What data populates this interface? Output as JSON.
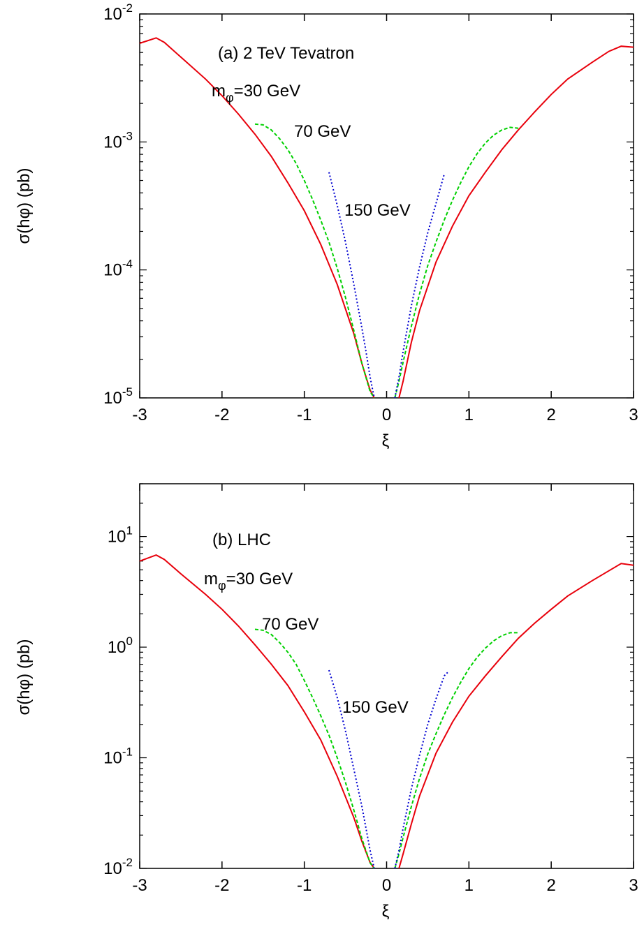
{
  "chart_data": [
    {
      "type": "line",
      "title": "(a) 2 TeV Tevatron",
      "annotations": [
        "m",
        "φ",
        "=30 GeV",
        "70 GeV",
        "150 GeV"
      ],
      "xlabel": "ξ",
      "ylabel": "σ(hφ)   (pb)",
      "xlim": [
        -3,
        3
      ],
      "ylim": [
        1e-05,
        0.01
      ],
      "yscale": "log",
      "grid": false,
      "x_ticks": [
        "-3",
        "-2",
        "-1",
        "0",
        "1",
        "2",
        "3"
      ],
      "y_ticks": [
        {
          "base": "10",
          "exp": "-5"
        },
        {
          "base": "10",
          "exp": "-4"
        },
        {
          "base": "10",
          "exp": "-3"
        },
        {
          "base": "10",
          "exp": "-2"
        }
      ],
      "series": [
        {
          "color": "#e8000b",
          "style": "solid",
          "x": [
            -3.0,
            -2.8,
            -2.7,
            -2.5,
            -2.2,
            -2.0,
            -1.8,
            -1.6,
            -1.4,
            -1.2,
            -1.0,
            -0.8,
            -0.6,
            -0.4,
            -0.3,
            -0.2,
            -0.15
          ],
          "y": [
            0.0059,
            0.0065,
            0.006,
            0.0046,
            0.0031,
            0.0023,
            0.00165,
            0.00115,
            0.00077,
            0.00048,
            0.00029,
            0.000158,
            7.7e-05,
            3.2e-05,
            1.85e-05,
            1.15e-05,
            1e-05
          ]
        },
        {
          "color": "#e8000b",
          "style": "solid",
          "x": [
            0.15,
            0.2,
            0.3,
            0.4,
            0.6,
            0.8,
            1.0,
            1.2,
            1.4,
            1.6,
            1.8,
            2.0,
            2.2,
            2.5,
            2.7,
            2.85,
            3.0
          ],
          "y": [
            1e-05,
            1.35e-05,
            2.7e-05,
            4.8e-05,
            0.000115,
            0.00022,
            0.00038,
            0.00058,
            0.00087,
            0.00124,
            0.00172,
            0.00235,
            0.0031,
            0.0042,
            0.0051,
            0.0056,
            0.0055
          ]
        },
        {
          "color": "#00d000",
          "style": "dashed",
          "x": [
            -1.6,
            -1.5,
            -1.4,
            -1.3,
            -1.2,
            -1.1,
            -1.0,
            -0.9,
            -0.8,
            -0.7,
            -0.6,
            -0.5,
            -0.4,
            -0.3,
            -0.2,
            -0.15
          ],
          "y": [
            0.00138,
            0.00136,
            0.00124,
            0.00106,
            0.00087,
            0.00068,
            0.0005,
            0.000355,
            0.000245,
            0.000165,
            0.000103,
            6.1e-05,
            3.4e-05,
            1.85e-05,
            1.12e-05,
            1e-05
          ]
        },
        {
          "color": "#00d000",
          "style": "dashed",
          "x": [
            0.1,
            0.15,
            0.2,
            0.3,
            0.4,
            0.5,
            0.6,
            0.7,
            0.8,
            0.9,
            1.0,
            1.1,
            1.2,
            1.3,
            1.4,
            1.5,
            1.6
          ],
          "y": [
            1e-05,
            1.35e-05,
            1.9e-05,
            3.6e-05,
            6.5e-05,
            0.000108,
            0.000165,
            0.000245,
            0.00035,
            0.00048,
            0.00064,
            0.00081,
            0.00098,
            0.00113,
            0.00124,
            0.0013,
            0.00128
          ]
        },
        {
          "color": "#0000d0",
          "style": "dotted",
          "x": [
            -0.7,
            -0.6,
            -0.5,
            -0.4,
            -0.3,
            -0.25,
            -0.2,
            -0.15
          ],
          "y": [
            0.00058,
            0.00032,
            0.000165,
            7.8e-05,
            3.5e-05,
            2.3e-05,
            1.45e-05,
            1e-05
          ]
        },
        {
          "color": "#0000d0",
          "style": "dotted",
          "x": [
            0.1,
            0.15,
            0.2,
            0.3,
            0.4,
            0.5,
            0.6,
            0.7
          ],
          "y": [
            1e-05,
            1.45e-05,
            2.3e-05,
            5.2e-05,
            0.000105,
            0.000195,
            0.00033,
            0.00056
          ]
        }
      ]
    },
    {
      "type": "line",
      "title": "(b) LHC",
      "annotations": [
        "m",
        "φ",
        "=30 GeV",
        "70 GeV",
        "150 GeV"
      ],
      "xlabel": "ξ",
      "ylabel": "σ(hφ)   (pb)",
      "xlim": [
        -3,
        3
      ],
      "ylim": [
        0.01,
        30
      ],
      "yscale": "log",
      "grid": false,
      "x_ticks": [
        "-3",
        "-2",
        "-1",
        "0",
        "1",
        "2",
        "3"
      ],
      "y_ticks": [
        {
          "base": "10",
          "exp": "-2"
        },
        {
          "base": "10",
          "exp": "-1"
        },
        {
          "base": "10",
          "exp": "0"
        },
        {
          "base": "10",
          "exp": "1"
        }
      ],
      "series": [
        {
          "color": "#e8000b",
          "style": "solid",
          "x": [
            -3.0,
            -2.8,
            -2.7,
            -2.5,
            -2.2,
            -2.0,
            -1.8,
            -1.6,
            -1.4,
            -1.2,
            -1.0,
            -0.8,
            -0.6,
            -0.4,
            -0.3,
            -0.2,
            -0.15
          ],
          "y": [
            6.0,
            6.8,
            6.2,
            4.6,
            3.0,
            2.2,
            1.55,
            1.05,
            0.7,
            0.45,
            0.26,
            0.145,
            0.068,
            0.029,
            0.0175,
            0.0113,
            0.01
          ]
        },
        {
          "color": "#e8000b",
          "style": "solid",
          "x": [
            0.15,
            0.2,
            0.3,
            0.4,
            0.6,
            0.8,
            1.0,
            1.2,
            1.4,
            1.6,
            1.8,
            2.0,
            2.2,
            2.5,
            2.7,
            2.85,
            3.0
          ],
          "y": [
            0.01,
            0.0135,
            0.025,
            0.045,
            0.11,
            0.21,
            0.36,
            0.55,
            0.82,
            1.2,
            1.65,
            2.2,
            2.9,
            4.0,
            4.9,
            5.7,
            5.5
          ]
        },
        {
          "color": "#00d000",
          "style": "dashed",
          "x": [
            -1.6,
            -1.5,
            -1.4,
            -1.3,
            -1.2,
            -1.1,
            -1.0,
            -0.9,
            -0.8,
            -0.7,
            -0.6,
            -0.5,
            -0.4,
            -0.3,
            -0.2,
            -0.15
          ],
          "y": [
            1.45,
            1.42,
            1.3,
            1.1,
            0.9,
            0.7,
            0.5,
            0.35,
            0.24,
            0.16,
            0.1,
            0.06,
            0.034,
            0.0185,
            0.0112,
            0.01
          ]
        },
        {
          "color": "#00d000",
          "style": "dashed",
          "x": [
            0.1,
            0.15,
            0.2,
            0.3,
            0.4,
            0.5,
            0.6,
            0.7,
            0.8,
            0.9,
            1.0,
            1.1,
            1.2,
            1.3,
            1.4,
            1.5,
            1.6
          ],
          "y": [
            0.01,
            0.0135,
            0.019,
            0.036,
            0.065,
            0.108,
            0.165,
            0.245,
            0.35,
            0.48,
            0.64,
            0.81,
            0.98,
            1.14,
            1.27,
            1.35,
            1.35
          ]
        },
        {
          "color": "#0000d0",
          "style": "dotted",
          "x": [
            -0.7,
            -0.6,
            -0.5,
            -0.4,
            -0.3,
            -0.25,
            -0.2,
            -0.15
          ],
          "y": [
            0.62,
            0.35,
            0.175,
            0.08,
            0.036,
            0.023,
            0.0145,
            0.01
          ]
        },
        {
          "color": "#0000d0",
          "style": "dotted",
          "x": [
            0.1,
            0.15,
            0.2,
            0.3,
            0.4,
            0.5,
            0.6,
            0.7,
            0.75
          ],
          "y": [
            0.01,
            0.0145,
            0.023,
            0.052,
            0.105,
            0.2,
            0.34,
            0.55,
            0.6
          ]
        }
      ]
    }
  ]
}
